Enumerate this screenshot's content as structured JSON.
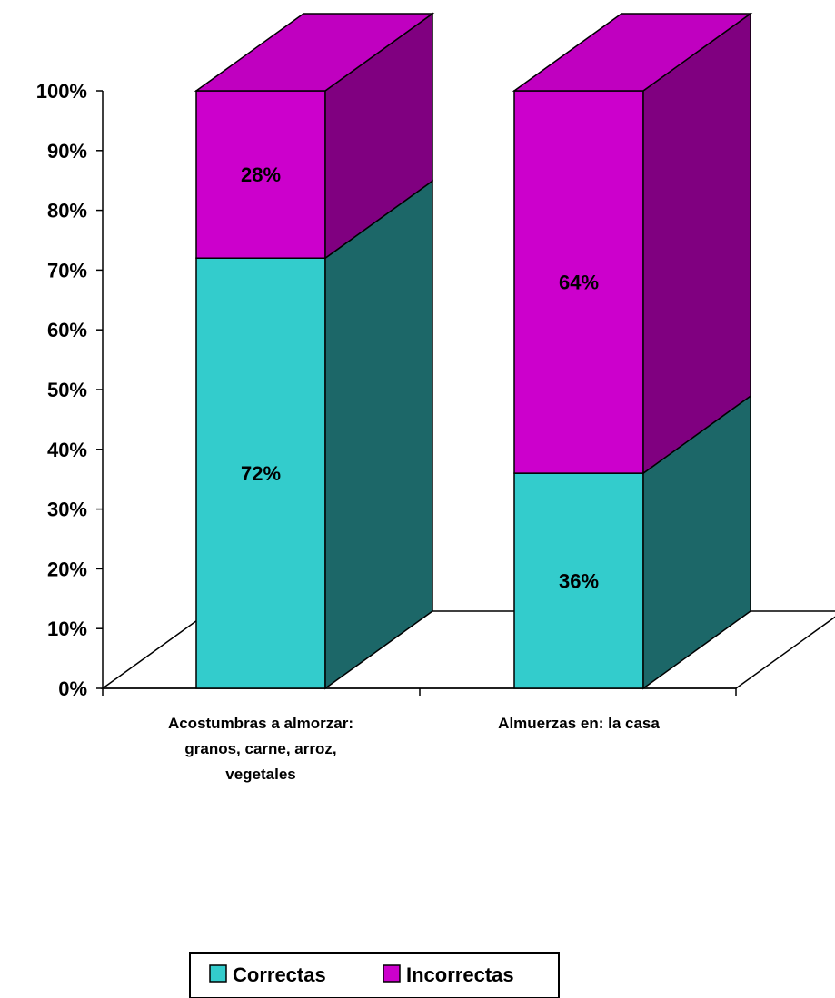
{
  "chart_data": {
    "type": "bar",
    "stacked": true,
    "percent": true,
    "three_d": true,
    "categories": [
      [
        "Acostumbras a almorzar:",
        "granos, carne, arroz,",
        "vegetales"
      ],
      [
        "Almuerzas en: la casa"
      ]
    ],
    "series": [
      {
        "name": "Correctas",
        "values": [
          72,
          36
        ],
        "labels": [
          "72%",
          "36%"
        ]
      },
      {
        "name": "Incorrectas",
        "values": [
          28,
          64
        ],
        "labels": [
          "28%",
          "64%"
        ]
      }
    ],
    "y_ticks": [
      0,
      10,
      20,
      30,
      40,
      50,
      60,
      70,
      80,
      90,
      100
    ],
    "y_tick_labels": [
      "0%",
      "10%",
      "20%",
      "30%",
      "40%",
      "50%",
      "60%",
      "70%",
      "80%",
      "90%",
      "100%"
    ],
    "ylim": [
      0,
      100
    ],
    "grid": false,
    "legend_position": "bottom"
  },
  "colors": {
    "Correctas": {
      "front": "#33CCCC",
      "side": "#1C6768",
      "top": "#33CCCC"
    },
    "Incorrectas": {
      "front": "#CC00CC",
      "side": "#800080",
      "top": "#C000C0"
    }
  }
}
